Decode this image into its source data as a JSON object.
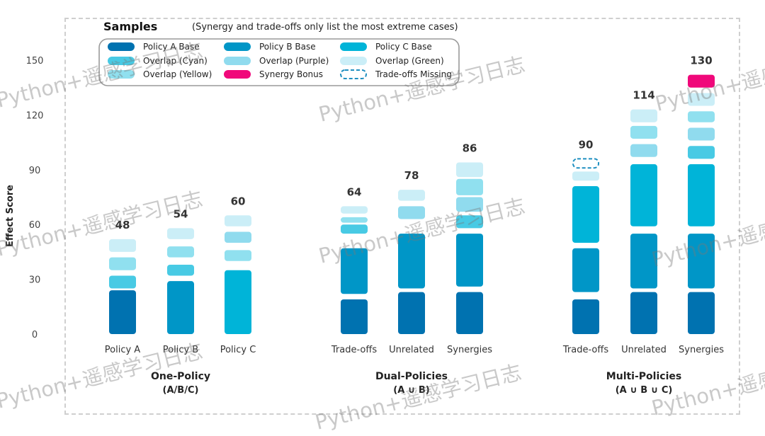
{
  "chart_data": {
    "type": "bar",
    "ylabel": "Effect Score",
    "yticks": [
      0,
      30,
      60,
      90,
      120,
      150
    ],
    "ylim": [
      0,
      150
    ],
    "legend": {
      "title": "Samples",
      "subtitle": "(Synergy and trade-offs only list the most extreme cases)",
      "position": "top-left",
      "items": [
        {
          "label": "Policy A Base",
          "color": "#0072b0",
          "style": "solid"
        },
        {
          "label": "Policy B Base",
          "color": "#0096c7",
          "style": "solid"
        },
        {
          "label": "Policy C Base",
          "color": "#00b4d8",
          "style": "solid"
        },
        {
          "label": "Overlap (Cyan)",
          "color": "#48cae4",
          "style": "solid"
        },
        {
          "label": "Overlap (Purple)",
          "color": "#90dbee",
          "style": "solid"
        },
        {
          "label": "Overlap (Green)",
          "color": "#cbeef7",
          "style": "solid"
        },
        {
          "label": "Overlap (Yellow)",
          "color": "#90e0ef",
          "style": "solid"
        },
        {
          "label": "Synergy Bonus",
          "color": "#f0087a",
          "style": "solid"
        },
        {
          "label": "Trade-offs Missing",
          "color": "#1f8fc0",
          "style": "dashed"
        }
      ]
    },
    "groups": [
      {
        "title": "One-Policy",
        "subtitle": "(A/B/C)",
        "bars": [
          {
            "label": "Policy A",
            "total": "48",
            "segments": [
              {
                "from": 0,
                "to": 24,
                "color": "#0072b0"
              },
              {
                "from": 25,
                "to": 32,
                "color": "#48cae4"
              },
              {
                "from": 35,
                "to": 42,
                "color": "#90e0ef"
              },
              {
                "from": 45,
                "to": 52,
                "color": "#cbeef7"
              }
            ]
          },
          {
            "label": "Policy B",
            "total": "54",
            "segments": [
              {
                "from": 0,
                "to": 29,
                "color": "#0096c7"
              },
              {
                "from": 32,
                "to": 38,
                "color": "#48cae4"
              },
              {
                "from": 42,
                "to": 48,
                "color": "#90e0ef"
              },
              {
                "from": 52,
                "to": 58,
                "color": "#cbeef7"
              }
            ]
          },
          {
            "label": "Policy C",
            "total": "60",
            "segments": [
              {
                "from": 0,
                "to": 35,
                "color": "#00b4d8"
              },
              {
                "from": 40,
                "to": 46,
                "color": "#90e0ef"
              },
              {
                "from": 50,
                "to": 56,
                "color": "#90dbee"
              },
              {
                "from": 59,
                "to": 65,
                "color": "#cbeef7"
              }
            ]
          }
        ]
      },
      {
        "title": "Dual-Policies",
        "subtitle": "(A ∪ B)",
        "bars": [
          {
            "label": "Trade-offs",
            "total": "64",
            "segments": [
              {
                "from": 0,
                "to": 19,
                "color": "#0072b0"
              },
              {
                "from": 22,
                "to": 47,
                "color": "#0096c7"
              },
              {
                "from": 55,
                "to": 60,
                "color": "#48cae4"
              },
              {
                "from": 61,
                "to": 64,
                "color": "#90e0ef"
              },
              {
                "from": 66,
                "to": 70,
                "color": "#cbeef7"
              }
            ]
          },
          {
            "label": "Unrelated",
            "total": "78",
            "segments": [
              {
                "from": 0,
                "to": 23,
                "color": "#0072b0"
              },
              {
                "from": 25,
                "to": 55,
                "color": "#0096c7"
              },
              {
                "from": 63,
                "to": 70,
                "color": "#90dbee"
              },
              {
                "from": 73,
                "to": 79,
                "color": "#cbeef7"
              }
            ]
          },
          {
            "label": "Synergies",
            "total": "86",
            "segments": [
              {
                "from": 0,
                "to": 23,
                "color": "#0072b0"
              },
              {
                "from": 26,
                "to": 55,
                "color": "#0096c7"
              },
              {
                "from": 58,
                "to": 65,
                "color": "#48cae4"
              },
              {
                "from": 67,
                "to": 75,
                "color": "#90dbee"
              },
              {
                "from": 76,
                "to": 85,
                "color": "#90e0ef"
              },
              {
                "from": 86,
                "to": 94,
                "color": "#cbeef7"
              }
            ]
          }
        ]
      },
      {
        "title": "Multi-Policies",
        "subtitle": "(A ∪ B ∪ C)",
        "bars": [
          {
            "label": "Trade-offs",
            "total": "90",
            "segments": [
              {
                "from": 0,
                "to": 19,
                "color": "#0072b0"
              },
              {
                "from": 23,
                "to": 47,
                "color": "#0096c7"
              },
              {
                "from": 50,
                "to": 81,
                "color": "#00b4d8"
              },
              {
                "from": 84,
                "to": 89,
                "color": "#cbeef7"
              },
              {
                "from": 91,
                "to": 96,
                "color": "#1f8fc0",
                "dashed": true
              }
            ]
          },
          {
            "label": "Unrelated",
            "total": "114",
            "segments": [
              {
                "from": 0,
                "to": 23,
                "color": "#0072b0"
              },
              {
                "from": 25,
                "to": 55,
                "color": "#0096c7"
              },
              {
                "from": 59,
                "to": 93,
                "color": "#00b4d8"
              },
              {
                "from": 97,
                "to": 104,
                "color": "#90dbee"
              },
              {
                "from": 107,
                "to": 114,
                "color": "#90e0ef"
              },
              {
                "from": 116,
                "to": 123,
                "color": "#cbeef7"
              }
            ]
          },
          {
            "label": "Synergies",
            "total": "130",
            "segments": [
              {
                "from": 0,
                "to": 23,
                "color": "#0072b0"
              },
              {
                "from": 25,
                "to": 55,
                "color": "#0096c7"
              },
              {
                "from": 59,
                "to": 93,
                "color": "#00b4d8"
              },
              {
                "from": 96,
                "to": 103,
                "color": "#48cae4"
              },
              {
                "from": 106,
                "to": 113,
                "color": "#90dbee"
              },
              {
                "from": 116,
                "to": 122,
                "color": "#90e0ef"
              },
              {
                "from": 125,
                "to": 132,
                "color": "#cbeef7"
              },
              {
                "from": 135,
                "to": 142,
                "color": "#f0087a"
              }
            ]
          }
        ]
      }
    ]
  },
  "watermark": {
    "text": "Python+遥感学习日志"
  }
}
